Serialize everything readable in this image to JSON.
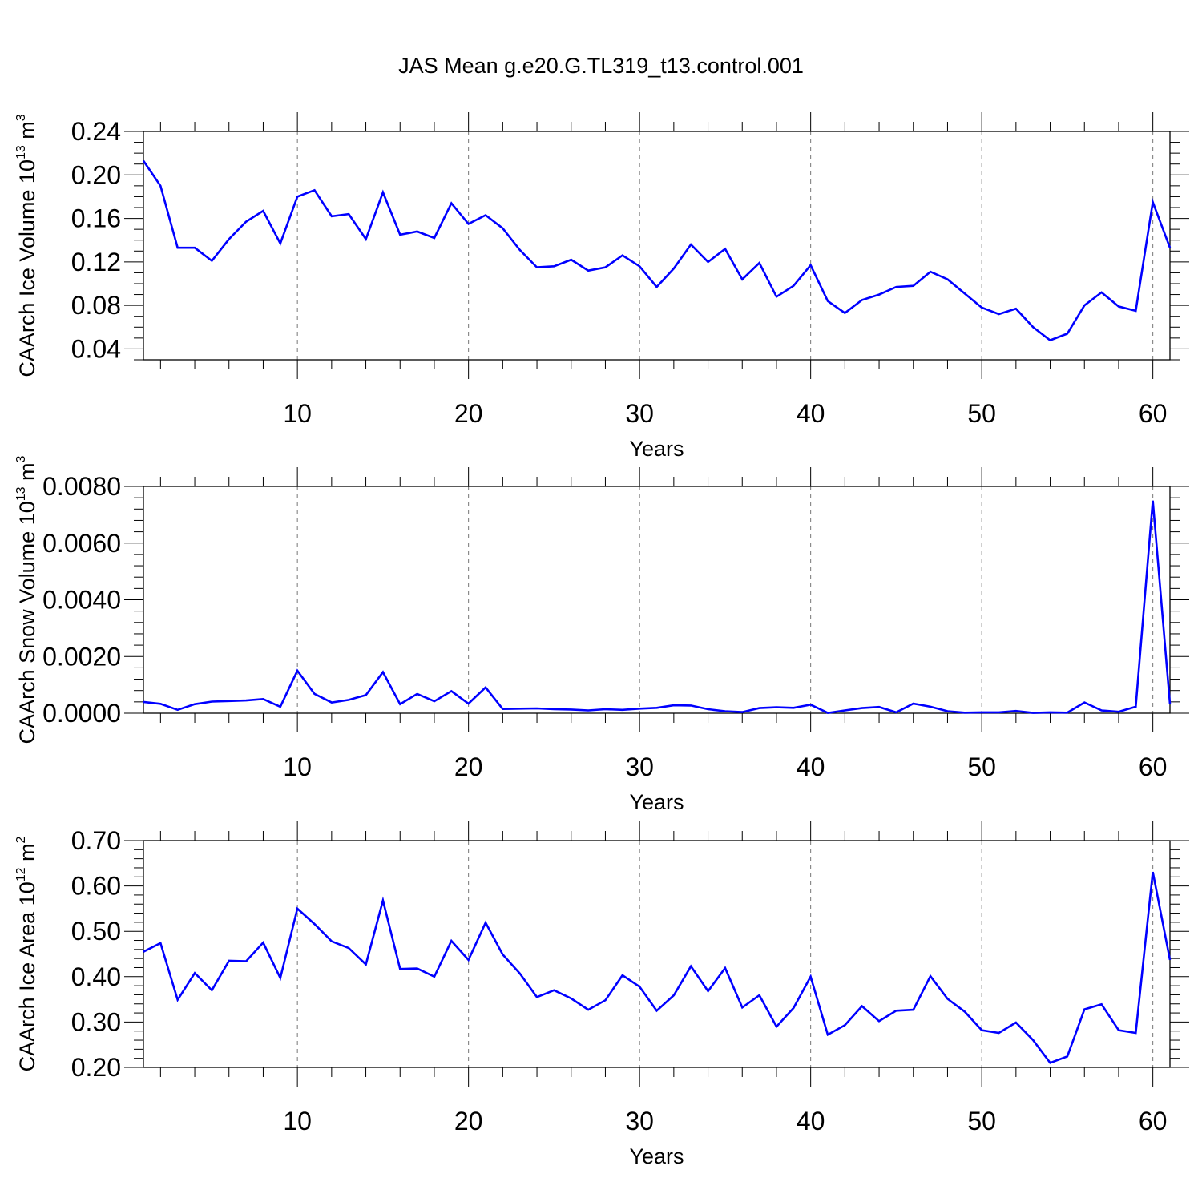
{
  "title": "JAS Mean g.e20.G.TL319_t13.control.001",
  "colors": {
    "series": "#0000ff",
    "axes": "#000000",
    "grid": "#777777"
  },
  "chart_data": [
    {
      "type": "line",
      "ylabel": "CAArch Ice Volume 10",
      "ylabel_exp": "13",
      "ylabel_unit": " m",
      "ylabel_unit_exp": "3",
      "xlabel": "Years",
      "xlim": [
        1,
        61
      ],
      "ylim": [
        0.03,
        0.24
      ],
      "xticks": [
        "10",
        "20",
        "30",
        "40",
        "50",
        "60"
      ],
      "yticks": [
        "0.04",
        "0.08",
        "0.12",
        "0.16",
        "0.20",
        "0.24"
      ],
      "gridlines_x": true,
      "x": [
        1,
        2,
        3,
        4,
        5,
        6,
        7,
        8,
        9,
        10,
        11,
        12,
        13,
        14,
        15,
        16,
        17,
        18,
        19,
        20,
        21,
        22,
        23,
        24,
        25,
        26,
        27,
        28,
        29,
        30,
        31,
        32,
        33,
        34,
        35,
        36,
        37,
        38,
        39,
        40,
        41,
        42,
        43,
        44,
        45,
        46,
        47,
        48,
        49,
        50,
        51,
        52,
        53,
        54,
        55,
        56,
        57,
        58,
        59,
        60,
        61
      ],
      "values": [
        0.213,
        0.19,
        0.133,
        0.133,
        0.121,
        0.141,
        0.157,
        0.167,
        0.137,
        0.18,
        0.186,
        0.162,
        0.164,
        0.141,
        0.184,
        0.145,
        0.148,
        0.142,
        0.174,
        0.155,
        0.163,
        0.151,
        0.131,
        0.115,
        0.116,
        0.122,
        0.112,
        0.115,
        0.126,
        0.116,
        0.097,
        0.114,
        0.136,
        0.12,
        0.132,
        0.104,
        0.119,
        0.088,
        0.098,
        0.117,
        0.084,
        0.073,
        0.085,
        0.09,
        0.097,
        0.098,
        0.111,
        0.104,
        0.091,
        0.078,
        0.072,
        0.077,
        0.06,
        0.048,
        0.054,
        0.08,
        0.092,
        0.079,
        0.075,
        0.175,
        0.133
      ]
    },
    {
      "type": "line",
      "ylabel": "CAArch Snow Volume 10",
      "ylabel_exp": "13",
      "ylabel_unit": " m",
      "ylabel_unit_exp": "3",
      "xlabel": "Years",
      "xlim": [
        1,
        61
      ],
      "ylim": [
        0.0,
        0.008
      ],
      "xticks": [
        "10",
        "20",
        "30",
        "40",
        "50",
        "60"
      ],
      "yticks": [
        "0.0000",
        "0.0020",
        "0.0040",
        "0.0060",
        "0.0080"
      ],
      "gridlines_x": true,
      "x": [
        1,
        2,
        3,
        4,
        5,
        6,
        7,
        8,
        9,
        10,
        11,
        12,
        13,
        14,
        15,
        16,
        17,
        18,
        19,
        20,
        21,
        22,
        23,
        24,
        25,
        26,
        27,
        28,
        29,
        30,
        31,
        32,
        33,
        34,
        35,
        36,
        37,
        38,
        39,
        40,
        41,
        42,
        43,
        44,
        45,
        46,
        47,
        48,
        49,
        50,
        51,
        52,
        53,
        54,
        55,
        56,
        57,
        58,
        59,
        60,
        61
      ],
      "values": [
        0.0004,
        0.00033,
        0.00012,
        0.00032,
        0.00041,
        0.00043,
        0.00045,
        0.0005,
        0.00023,
        0.0015,
        0.00068,
        0.00038,
        0.00047,
        0.00064,
        0.00145,
        0.00032,
        0.00068,
        0.00042,
        0.00078,
        0.00034,
        0.00091,
        0.00015,
        0.00016,
        0.00017,
        0.00014,
        0.00013,
        0.0001,
        0.00014,
        0.00012,
        0.00016,
        0.00019,
        0.00028,
        0.00027,
        0.00014,
        7e-05,
        4e-05,
        0.00018,
        0.00021,
        0.00019,
        0.0003,
        1e-05,
        0.0001,
        0.00018,
        0.00022,
        3e-05,
        0.00034,
        0.00023,
        7e-05,
        2e-05,
        3e-05,
        3e-05,
        8e-05,
        1e-05,
        3e-05,
        2e-05,
        0.00038,
        0.0001,
        5e-05,
        0.00023,
        0.0075,
        0.00032
      ]
    },
    {
      "type": "line",
      "ylabel": "CAArch Ice Area 10",
      "ylabel_exp": "12",
      "ylabel_unit": " m",
      "ylabel_unit_exp": "2",
      "xlabel": "Years",
      "xlim": [
        1,
        61
      ],
      "ylim": [
        0.2,
        0.7
      ],
      "xticks": [
        "10",
        "20",
        "30",
        "40",
        "50",
        "60"
      ],
      "yticks": [
        "0.20",
        "0.30",
        "0.40",
        "0.50",
        "0.60",
        "0.70"
      ],
      "gridlines_x": true,
      "x": [
        1,
        2,
        3,
        4,
        5,
        6,
        7,
        8,
        9,
        10,
        11,
        12,
        13,
        14,
        15,
        16,
        17,
        18,
        19,
        20,
        21,
        22,
        23,
        24,
        25,
        26,
        27,
        28,
        29,
        30,
        31,
        32,
        33,
        34,
        35,
        36,
        37,
        38,
        39,
        40,
        41,
        42,
        43,
        44,
        45,
        46,
        47,
        48,
        49,
        50,
        51,
        52,
        53,
        54,
        55,
        56,
        57,
        58,
        59,
        60,
        61
      ],
      "values": [
        0.455,
        0.474,
        0.349,
        0.408,
        0.37,
        0.435,
        0.434,
        0.475,
        0.397,
        0.55,
        0.516,
        0.478,
        0.463,
        0.427,
        0.568,
        0.417,
        0.418,
        0.4,
        0.479,
        0.437,
        0.519,
        0.449,
        0.407,
        0.355,
        0.37,
        0.352,
        0.327,
        0.348,
        0.403,
        0.378,
        0.325,
        0.359,
        0.423,
        0.368,
        0.419,
        0.332,
        0.359,
        0.29,
        0.331,
        0.4,
        0.272,
        0.293,
        0.335,
        0.302,
        0.325,
        0.327,
        0.401,
        0.351,
        0.323,
        0.282,
        0.276,
        0.299,
        0.26,
        0.21,
        0.224,
        0.328,
        0.339,
        0.282,
        0.276,
        0.631,
        0.437
      ]
    }
  ]
}
